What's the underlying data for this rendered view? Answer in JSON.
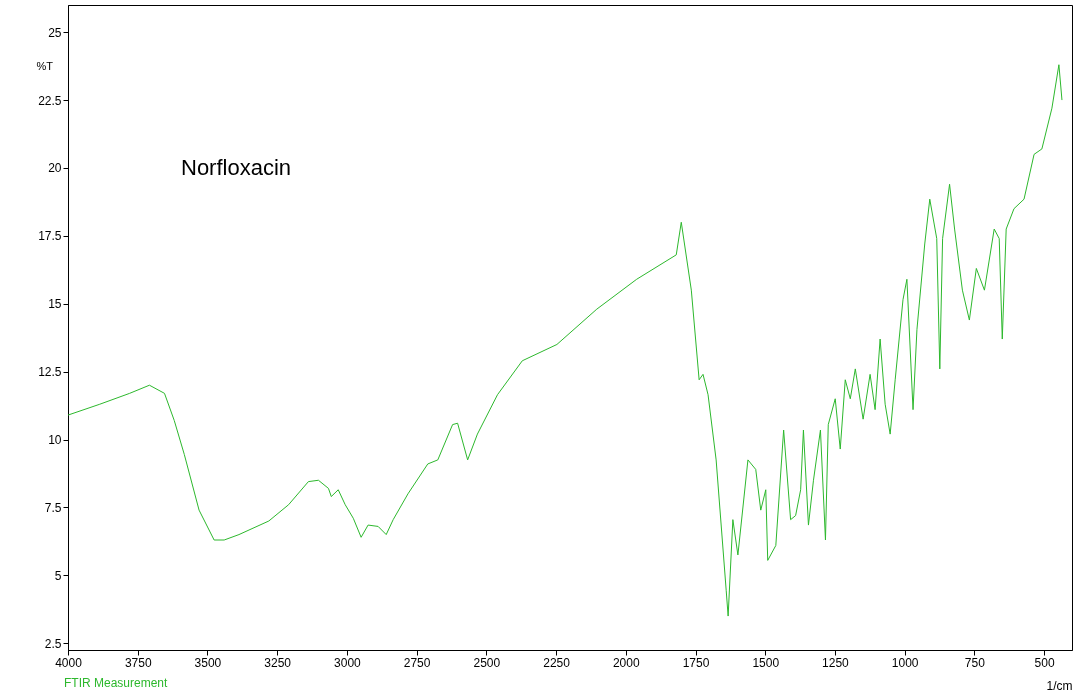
{
  "chart_data": {
    "type": "line",
    "title": "Norfloxacin",
    "xlabel": "1/cm",
    "ylabel": "%T",
    "annotations": [
      "FTIR Measurement"
    ],
    "xlim": [
      4000,
      400
    ],
    "ylim": [
      2.25,
      26
    ],
    "xticks": [
      4000,
      3750,
      3500,
      3250,
      3000,
      2750,
      2500,
      2250,
      2000,
      1750,
      1500,
      1250,
      1000,
      750,
      500
    ],
    "yticks": [
      2.5,
      5,
      7.5,
      10,
      12.5,
      15,
      17.5,
      20,
      22.5,
      25
    ],
    "grid": false,
    "marker": "none",
    "line_style": "solid",
    "series": [
      {
        "color": "#2db82d",
        "x": [
          4000,
          3886,
          3779,
          3708,
          3654,
          3619,
          3583,
          3530,
          3476,
          3440,
          3387,
          3280,
          3209,
          3138,
          3102,
          3066,
          3056,
          3031,
          3006,
          2977,
          2949,
          2924,
          2888,
          2859,
          2834,
          2781,
          2710,
          2674,
          2621,
          2603,
          2567,
          2532,
          2460,
          2371,
          2247,
          2104,
          1961,
          1819,
          1801,
          1765,
          1737,
          1723,
          1705,
          1676,
          1640,
          1633,
          1616,
          1598,
          1562,
          1534,
          1516,
          1498,
          1491,
          1462,
          1434,
          1409,
          1391,
          1373,
          1363,
          1345,
          1327,
          1302,
          1284,
          1274,
          1249,
          1231,
          1213,
          1195,
          1177,
          1149,
          1124,
          1106,
          1088,
          1070,
          1052,
          1034,
          1006,
          992,
          970,
          956,
          928,
          910,
          885,
          874,
          864,
          839,
          821,
          793,
          768,
          743,
          714,
          679,
          661,
          650,
          636,
          608,
          572,
          536,
          508,
          472,
          447,
          436
        ],
        "values": [
          10.9,
          11.3,
          11.7,
          12.0,
          11.7,
          10.7,
          9.45,
          7.4,
          6.3,
          6.3,
          6.5,
          7.0,
          7.6,
          8.45,
          8.5,
          8.2,
          7.9,
          8.15,
          7.6,
          7.1,
          6.4,
          6.85,
          6.8,
          6.5,
          7.05,
          8.0,
          9.1,
          9.25,
          10.55,
          10.6,
          9.25,
          10.2,
          11.65,
          12.9,
          13.5,
          14.8,
          15.9,
          16.8,
          18.0,
          15.5,
          12.2,
          12.4,
          11.65,
          9.25,
          4.45,
          3.5,
          7.05,
          5.75,
          9.25,
          8.9,
          7.4,
          8.15,
          5.55,
          6.1,
          10.35,
          7.05,
          7.2,
          8.15,
          10.35,
          6.85,
          8.5,
          10.35,
          6.3,
          10.55,
          11.5,
          9.65,
          12.2,
          11.5,
          12.6,
          10.75,
          12.4,
          11.1,
          13.7,
          11.3,
          10.2,
          12.2,
          15.15,
          15.9,
          11.1,
          14.05,
          17.2,
          18.85,
          17.4,
          12.6,
          17.4,
          19.4,
          17.75,
          15.5,
          14.4,
          16.3,
          15.5,
          17.75,
          17.4,
          13.7,
          17.75,
          18.5,
          18.85,
          20.5,
          20.7,
          22.2,
          23.8,
          22.5
        ]
      }
    ]
  }
}
